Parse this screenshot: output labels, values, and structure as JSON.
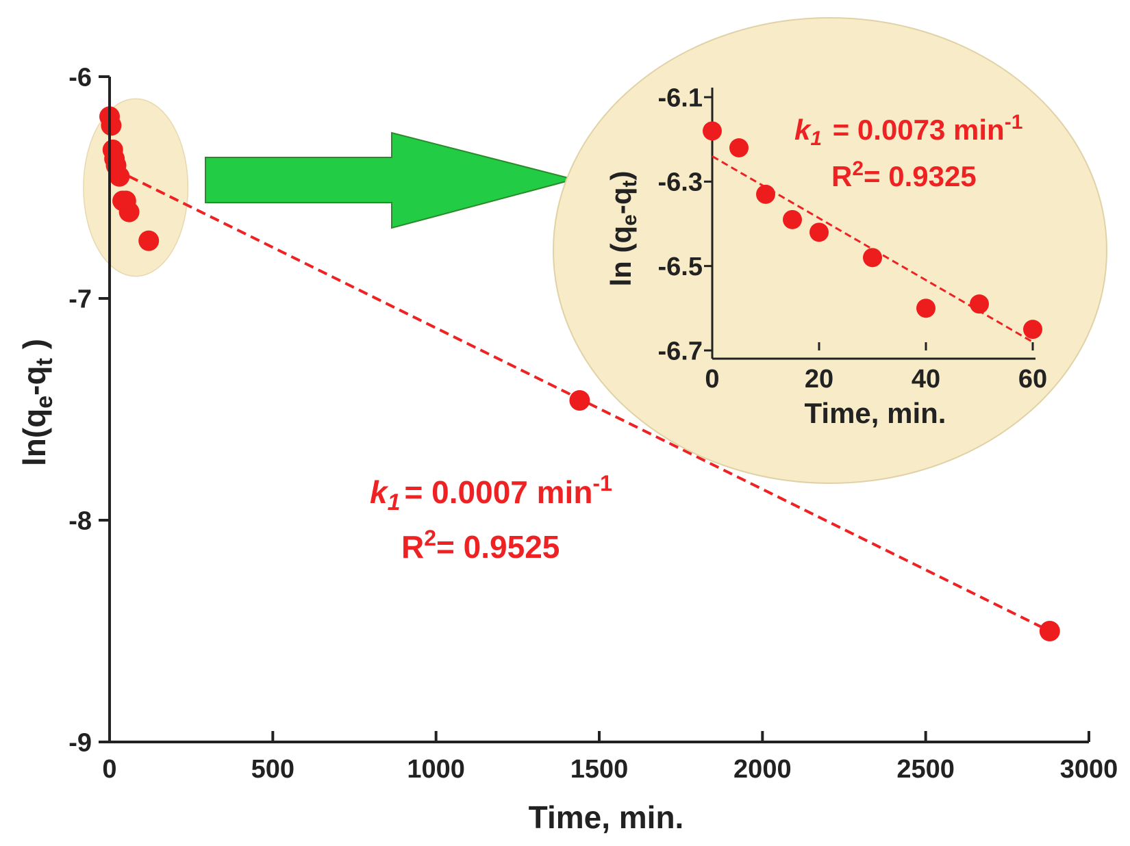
{
  "colors": {
    "series": "#ee1d1d",
    "fit_line": "#ee2222",
    "axis": "#222222",
    "highlight": "#f8ecc8",
    "arrow": "#22cc44",
    "arrow_stroke": "#2a8a2a",
    "annotation": "#ee2222"
  },
  "chart_data": [
    {
      "type": "scatter",
      "xlabel": "Time, min.",
      "ylabel": {
        "base": "ln(q",
        "sub1": "e",
        "mid": "-q",
        "sub2": "t",
        "end": " )"
      },
      "xlim": [
        0,
        3000
      ],
      "ylim": [
        -9,
        -6
      ],
      "x_ticks": [
        0,
        500,
        1000,
        1500,
        2000,
        2500,
        3000
      ],
      "y_ticks": [
        -6,
        -7,
        -8,
        -9
      ],
      "series": [
        {
          "points": [
            {
              "x": 0,
              "y": -6.18
            },
            {
              "x": 5,
              "y": -6.22
            },
            {
              "x": 10,
              "y": -6.33
            },
            {
              "x": 15,
              "y": -6.37
            },
            {
              "x": 20,
              "y": -6.4
            },
            {
              "x": 30,
              "y": -6.45
            },
            {
              "x": 40,
              "y": -6.56
            },
            {
              "x": 50,
              "y": -6.56
            },
            {
              "x": 60,
              "y": -6.61
            },
            {
              "x": 120,
              "y": -6.74
            },
            {
              "x": 1440,
              "y": -7.46
            },
            {
              "x": 2880,
              "y": -8.5
            }
          ]
        }
      ],
      "fit_line": {
        "x": [
          60,
          2880
        ],
        "y": [
          -6.45,
          -8.5
        ],
        "style": "dashed"
      },
      "highlight_region": {
        "x_range": [
          -80,
          240
        ],
        "y_range": [
          -6.9,
          -6.1
        ]
      },
      "annotation": {
        "k_sym": "k",
        "k_sub": "1",
        "k_text": "= 0.0007  min",
        "k_sup": "-1",
        "r_sym": "R",
        "r_sup": "2",
        "r_text": "= 0.9525"
      }
    },
    {
      "type": "scatter",
      "xlabel": "Time, min.",
      "ylabel": {
        "base": "ln (q",
        "sub1": "e",
        "mid": "-q",
        "sub2": "t",
        "end": ")"
      },
      "xlim": [
        0,
        60
      ],
      "ylim": [
        -6.7,
        -6.1
      ],
      "x_ticks": [
        0,
        20,
        40,
        60
      ],
      "y_ticks": [
        -6.1,
        -6.3,
        -6.5,
        -6.7
      ],
      "series": [
        {
          "points": [
            {
              "x": 0,
              "y": -6.18
            },
            {
              "x": 5,
              "y": -6.22
            },
            {
              "x": 10,
              "y": -6.33
            },
            {
              "x": 15,
              "y": -6.39
            },
            {
              "x": 20,
              "y": -6.42
            },
            {
              "x": 30,
              "y": -6.48
            },
            {
              "x": 40,
              "y": -6.6
            },
            {
              "x": 50,
              "y": -6.59
            },
            {
              "x": 60,
              "y": -6.65
            }
          ]
        }
      ],
      "fit_line": {
        "x": [
          0,
          60
        ],
        "y": [
          -6.24,
          -6.68
        ],
        "style": "dashed"
      },
      "annotation": {
        "k_sym": "k",
        "k_sub": "1",
        "k_text": " = 0.0073 min",
        "k_sup": "-1",
        "r_sym": "R",
        "r_sup": "2",
        "r_text": "= 0.9325"
      }
    }
  ]
}
